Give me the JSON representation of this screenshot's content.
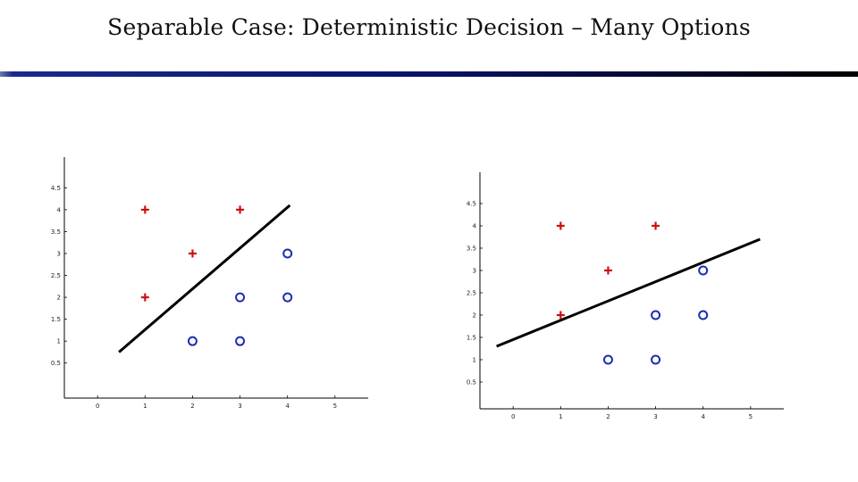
{
  "title": "Separable Case: Deterministic Decision – Many Options",
  "colors": {
    "plus": "#cc1111",
    "circle": "#1a2db3",
    "line": "#000000",
    "rule": "#0a1470"
  },
  "chart_data": [
    {
      "type": "scatter",
      "xlim": [
        -0.7,
        5.7
      ],
      "ylim": [
        -0.3,
        5.2
      ],
      "x_ticks": [
        "0",
        "1",
        "2",
        "3",
        "4",
        "5"
      ],
      "y_ticks": [
        "0.5",
        "1",
        "1.5",
        "2",
        "2.5",
        "3",
        "3.5",
        "4",
        "4.5"
      ],
      "series": [
        {
          "marker": "plus",
          "points": [
            [
              1,
              4
            ],
            [
              3,
              4
            ],
            [
              2,
              3
            ],
            [
              1,
              2
            ]
          ]
        },
        {
          "marker": "circle",
          "points": [
            [
              4,
              3
            ],
            [
              3,
              2
            ],
            [
              4,
              2
            ],
            [
              2,
              1
            ],
            [
              3,
              1
            ]
          ]
        }
      ],
      "decision_line": [
        [
          0.45,
          0.75
        ],
        [
          4.05,
          4.1
        ]
      ]
    },
    {
      "type": "scatter",
      "xlim": [
        -0.7,
        5.7
      ],
      "ylim": [
        -0.1,
        5.2
      ],
      "x_ticks": [
        "0",
        "1",
        "2",
        "3",
        "4",
        "5"
      ],
      "y_ticks": [
        "0.5",
        "1",
        "1.5",
        "2",
        "2.5",
        "3",
        "3.5",
        "4",
        "4.5"
      ],
      "series": [
        {
          "marker": "plus",
          "points": [
            [
              1,
              4
            ],
            [
              3,
              4
            ],
            [
              2,
              3
            ],
            [
              1,
              2
            ]
          ]
        },
        {
          "marker": "circle",
          "points": [
            [
              4,
              3
            ],
            [
              3,
              2
            ],
            [
              4,
              2
            ],
            [
              2,
              1
            ],
            [
              3,
              1
            ]
          ]
        }
      ],
      "decision_line": [
        [
          -0.35,
          1.3
        ],
        [
          5.2,
          3.7
        ]
      ]
    }
  ]
}
